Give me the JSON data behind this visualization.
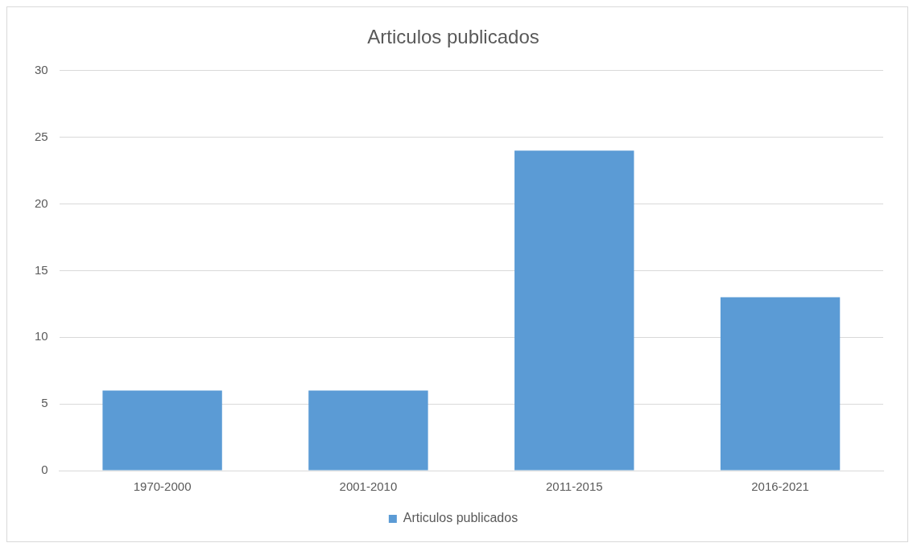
{
  "chart_data": {
    "type": "bar",
    "title": "Articulos publicados",
    "categories": [
      "1970-2000",
      "2001-2010",
      "2011-2015",
      "2016-2021"
    ],
    "series": [
      {
        "name": "Articulos publicados",
        "color": "#5b9bd5",
        "values": [
          6,
          6,
          24,
          13
        ]
      }
    ],
    "ylim": [
      0,
      30
    ],
    "yticks": [
      0,
      5,
      10,
      15,
      20,
      25,
      30
    ],
    "grid": "y",
    "legend": "bottom"
  }
}
